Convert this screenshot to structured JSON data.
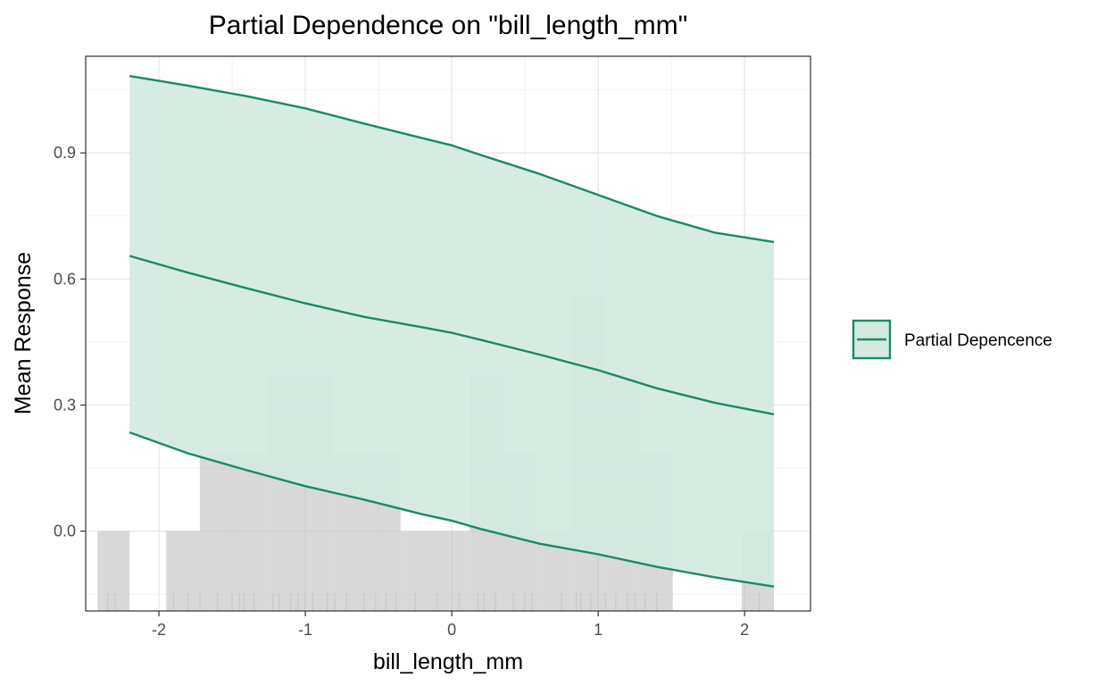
{
  "chart_data": {
    "type": "line",
    "title": "Partial Dependence on \"bill_length_mm\"",
    "xlabel": "bill_length_mm",
    "ylabel": "Mean Response",
    "xlim": [
      -2.5,
      2.45
    ],
    "ylim": [
      -0.19,
      1.13
    ],
    "x_ticks": [
      -2,
      -1,
      0,
      1,
      2
    ],
    "x_tick_labels": [
      "-2",
      "-1",
      "0",
      "1",
      "2"
    ],
    "y_ticks": [
      0.0,
      0.3,
      0.6,
      0.9
    ],
    "y_tick_labels": [
      "0.0",
      "0.3",
      "0.6",
      "0.9"
    ],
    "grid": true,
    "legend_position": "right",
    "colors": {
      "line": "#1b8a62",
      "ribbon": "#d2eae0",
      "histogram": "#b3b3b3",
      "rug": "#c8c8c8"
    },
    "series": [
      {
        "name": "Partial Depencence",
        "x": [
          -2.2,
          -1.8,
          -1.4,
          -1.0,
          -0.6,
          -0.2,
          0.0,
          0.2,
          0.6,
          1.0,
          1.4,
          1.8,
          2.2
        ],
        "fit": [
          0.655,
          0.615,
          0.578,
          0.542,
          0.51,
          0.485,
          0.472,
          0.455,
          0.42,
          0.383,
          0.34,
          0.305,
          0.278
        ],
        "upper": [
          1.083,
          1.06,
          1.035,
          1.006,
          0.97,
          0.935,
          0.918,
          0.895,
          0.85,
          0.8,
          0.75,
          0.71,
          0.688
        ],
        "lower": [
          0.235,
          0.185,
          0.145,
          0.107,
          0.075,
          0.04,
          0.025,
          0.005,
          -0.03,
          -0.055,
          -0.085,
          -0.11,
          -0.132
        ]
      }
    ],
    "histogram": {
      "baseline": -0.19,
      "bins": [
        {
          "x0": -2.42,
          "x1": -2.2,
          "top": 0.0
        },
        {
          "x0": -1.95,
          "x1": -1.72,
          "top": 0.0
        },
        {
          "x0": -1.72,
          "x1": -1.26,
          "top": 0.183
        },
        {
          "x0": -1.26,
          "x1": -0.81,
          "top": 0.372
        },
        {
          "x0": -0.81,
          "x1": -0.35,
          "top": 0.183
        },
        {
          "x0": -0.35,
          "x1": 0.12,
          "top": 0.0
        },
        {
          "x0": 0.12,
          "x1": 0.35,
          "top": 0.372
        },
        {
          "x0": 0.35,
          "x1": 0.58,
          "top": 0.183
        },
        {
          "x0": 0.58,
          "x1": 0.82,
          "top": 0.0
        },
        {
          "x0": 0.82,
          "x1": 1.05,
          "top": 0.563
        },
        {
          "x0": 1.05,
          "x1": 1.28,
          "top": 0.372
        },
        {
          "x0": 1.28,
          "x1": 1.51,
          "top": 0.183
        },
        {
          "x0": 1.98,
          "x1": 2.2,
          "top": 0.0
        }
      ]
    },
    "rug": [
      -2.35,
      -2.3,
      -1.9,
      -1.8,
      -1.72,
      -1.6,
      -1.5,
      -1.45,
      -1.42,
      -1.35,
      -1.22,
      -1.18,
      -1.1,
      -1.05,
      -1.0,
      -0.95,
      -0.85,
      -0.8,
      -0.72,
      -0.6,
      -0.52,
      -0.45,
      -0.38,
      -0.25,
      -0.1,
      0.05,
      0.18,
      0.22,
      0.3,
      0.42,
      0.5,
      0.55,
      0.75,
      0.85,
      0.88,
      0.95,
      1.05,
      1.12,
      1.2,
      1.25,
      1.32,
      1.4,
      2.1
    ]
  }
}
